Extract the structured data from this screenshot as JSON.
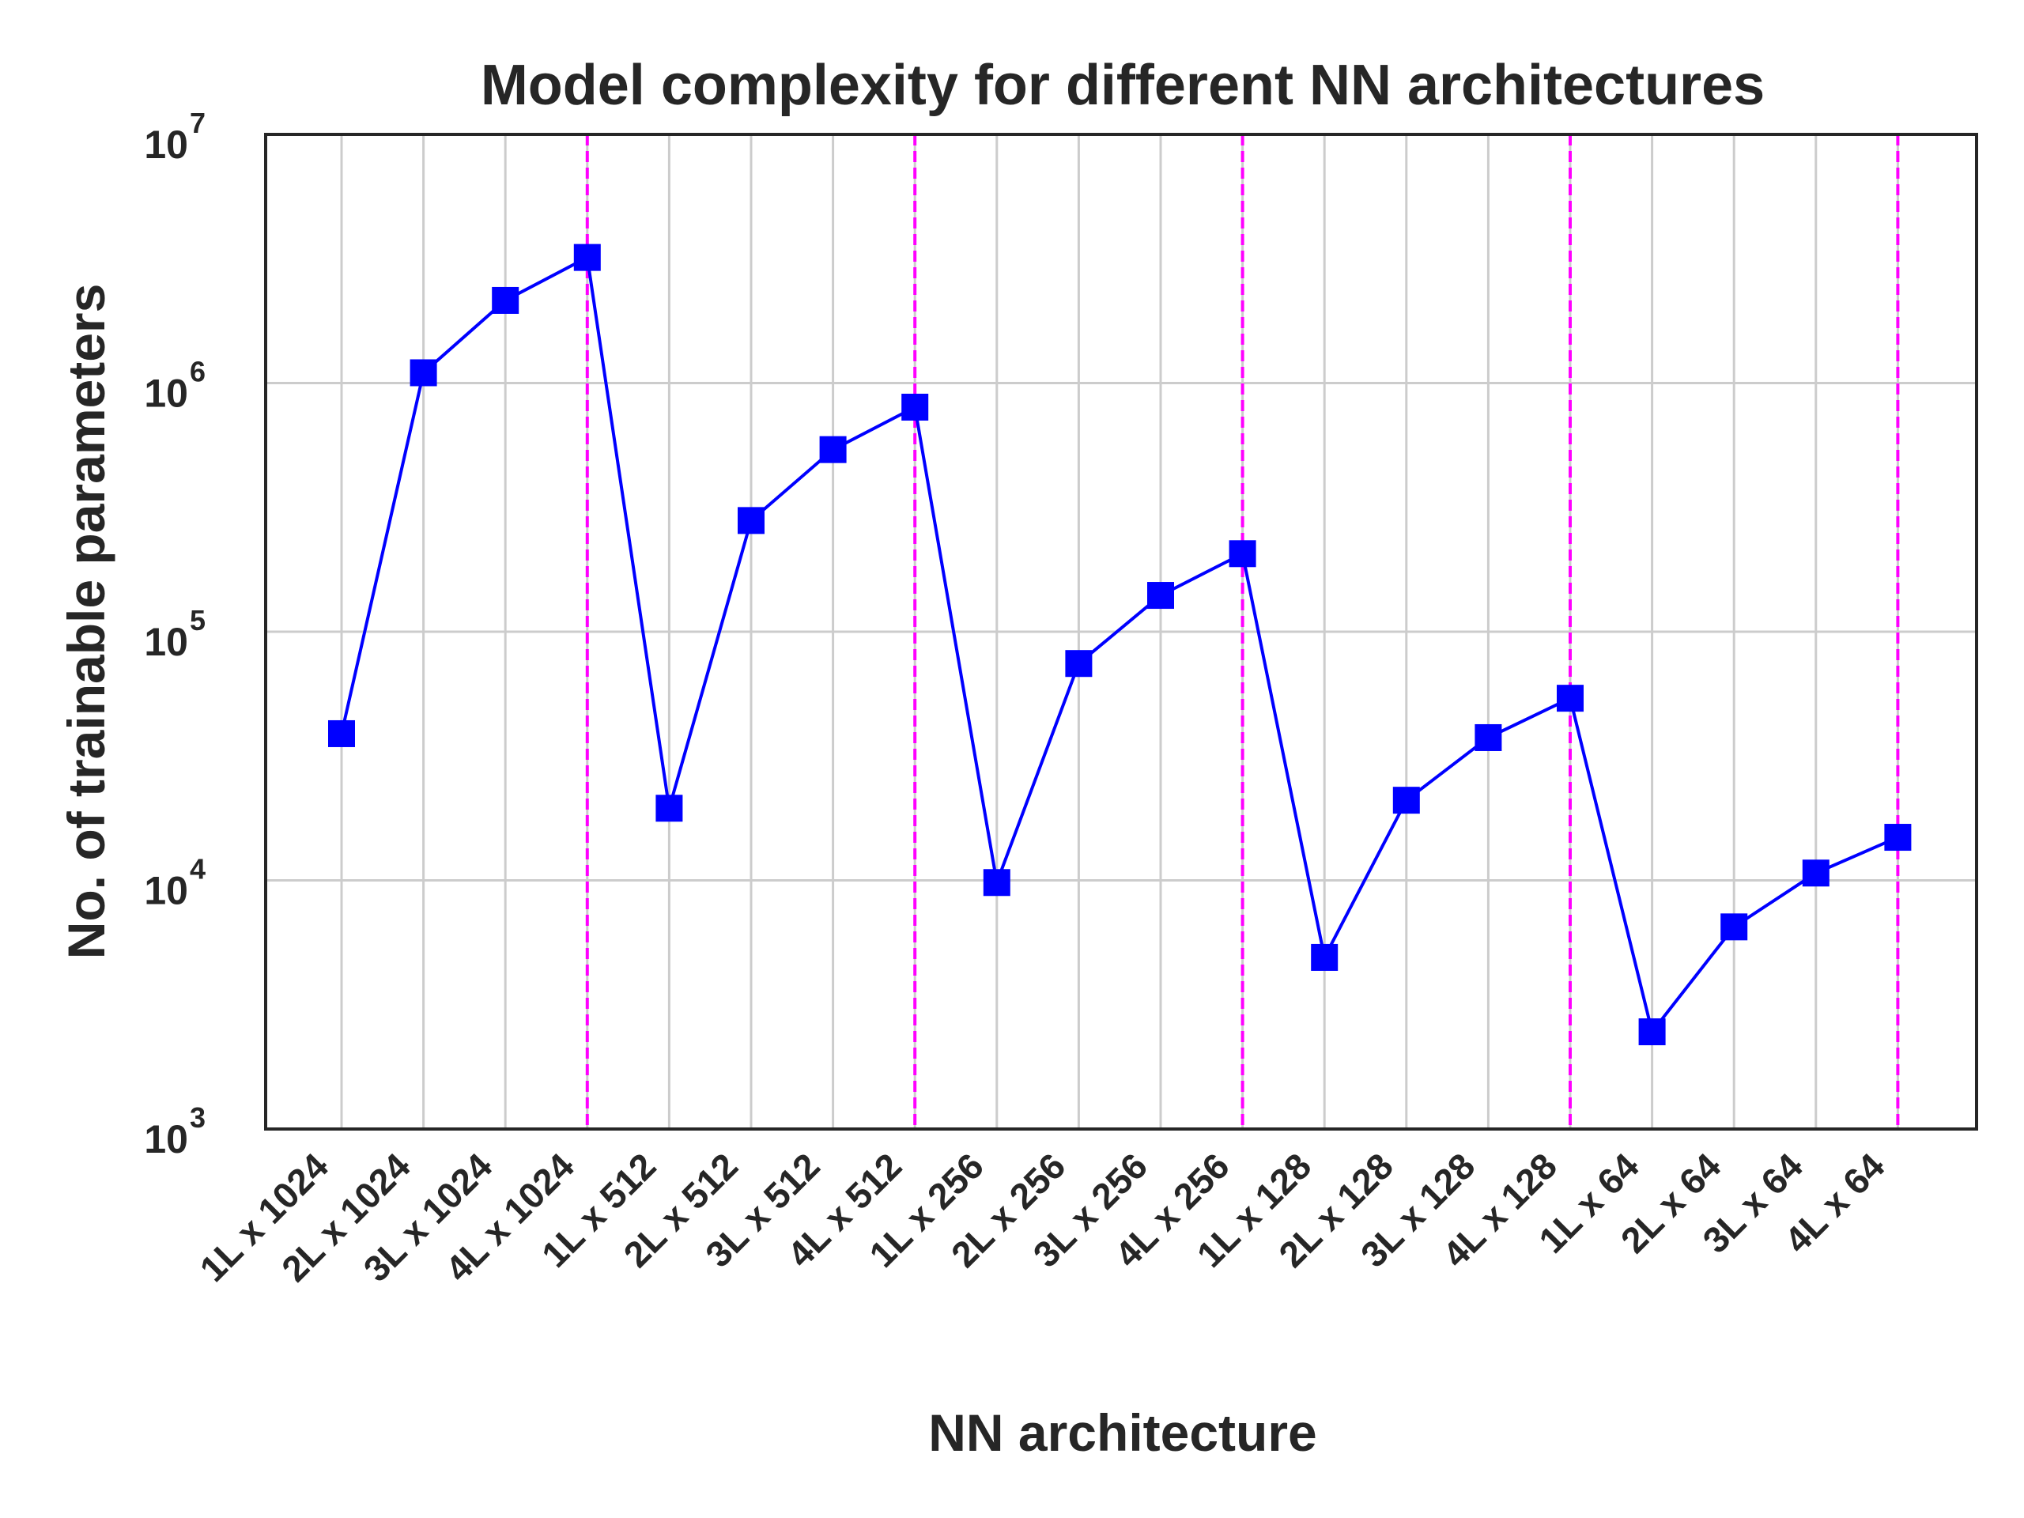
{
  "chart_data": {
    "type": "line",
    "title": "Model complexity for different NN architectures",
    "xlabel": "NN architecture",
    "ylabel": "No. of trainable parameters",
    "yscale": "log",
    "ylim": [
      1000,
      10000000
    ],
    "yticks": [
      {
        "base": "10",
        "exp": "3",
        "value": 1000
      },
      {
        "base": "10",
        "exp": "4",
        "value": 10000
      },
      {
        "base": "10",
        "exp": "5",
        "value": 100000
      },
      {
        "base": "10",
        "exp": "6",
        "value": 1000000
      },
      {
        "base": "10",
        "exp": "7",
        "value": 10000000
      }
    ],
    "categories": [
      "1L x 1024",
      "2L x 1024",
      "3L x 1024",
      "4L x 1024",
      "1L x 512",
      "2L x 512",
      "3L x 512",
      "4L x 512",
      "1L x 256",
      "2L x 256",
      "3L x 256",
      "4L x 256",
      "1L x 128",
      "2L x 128",
      "3L x 128",
      "4L x 128",
      "1L x 64",
      "2L x 64",
      "3L x 64",
      "4L x 64"
    ],
    "series": [
      {
        "values": [
          38900,
          1100000,
          2150000,
          3200000,
          19500,
          280000,
          540000,
          800000,
          9800,
          74500,
          140000,
          206000,
          4900,
          21000,
          37500,
          54000,
          2460,
          6500,
          10700,
          14900
        ],
        "color": "#0000ff",
        "marker": "square"
      }
    ],
    "vlines": {
      "categories": [
        "4L x 1024",
        "4L x 512",
        "4L x 256",
        "4L x 128",
        "4L x 64"
      ],
      "color": "#ff00ff",
      "style": "dashed"
    },
    "grid": true
  }
}
